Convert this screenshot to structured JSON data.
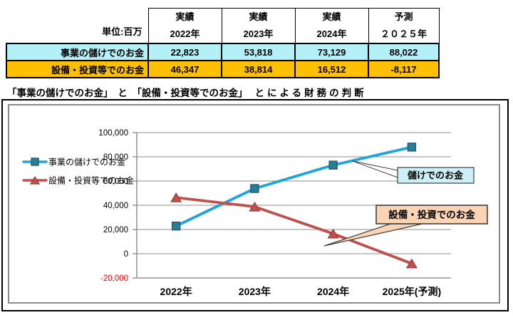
{
  "table": {
    "unit_label": "単位:百万",
    "columns": [
      {
        "status": "実績",
        "year": "2022年"
      },
      {
        "status": "実績",
        "year": "2023年"
      },
      {
        "status": "実績",
        "year": "2024年"
      },
      {
        "status": "予測",
        "year": "２０２５年"
      }
    ],
    "rows": [
      {
        "label": "事業の儲けでのお金",
        "values": [
          "22,823",
          "53,818",
          "73,129",
          "88,022"
        ]
      },
      {
        "label": "設備・投資等でのお金",
        "values": [
          "46,347",
          "38,814",
          "16,512",
          "-8,117"
        ]
      }
    ]
  },
  "title": {
    "part1": "「事業の儲けでのお金」　と　「設備・投資等でのお金」",
    "part2": "とによる財務の判断"
  },
  "chart_data": {
    "type": "line",
    "categories": [
      "2022年",
      "2023年",
      "2024年",
      "2025年(予測)"
    ],
    "series": [
      {
        "name": "事業の儲けでのお金",
        "values": [
          22823,
          53818,
          73129,
          88022
        ],
        "color": "#21A3DD",
        "marker": "square",
        "marker_fill": "#2B7C97",
        "marker_stroke": "#1D5D72"
      },
      {
        "name": "設備・投資等でのお金",
        "values": [
          46347,
          38814,
          16512,
          -8117
        ],
        "color": "#C0504D",
        "marker": "triangle",
        "marker_fill": "#C0504D",
        "marker_stroke": "#9E3B38"
      }
    ],
    "ylim": [
      -20000,
      100000
    ],
    "ytick_step": 20000,
    "grid": true,
    "legend_position": "left-inside",
    "axis_color": "#808080",
    "grid_color": "#8E8E8E",
    "negative_tick_color": "#FF0000"
  },
  "callouts": [
    {
      "text": "儲けでのお金",
      "bg": "#CDEFF8"
    },
    {
      "text": "設備・投資でのお金",
      "bg": "#FBD5B3"
    }
  ],
  "colors": {
    "row_profit_bg": "#B4F0F8",
    "row_invest_bg": "#FFC000",
    "negative_value": "#FF0000"
  }
}
